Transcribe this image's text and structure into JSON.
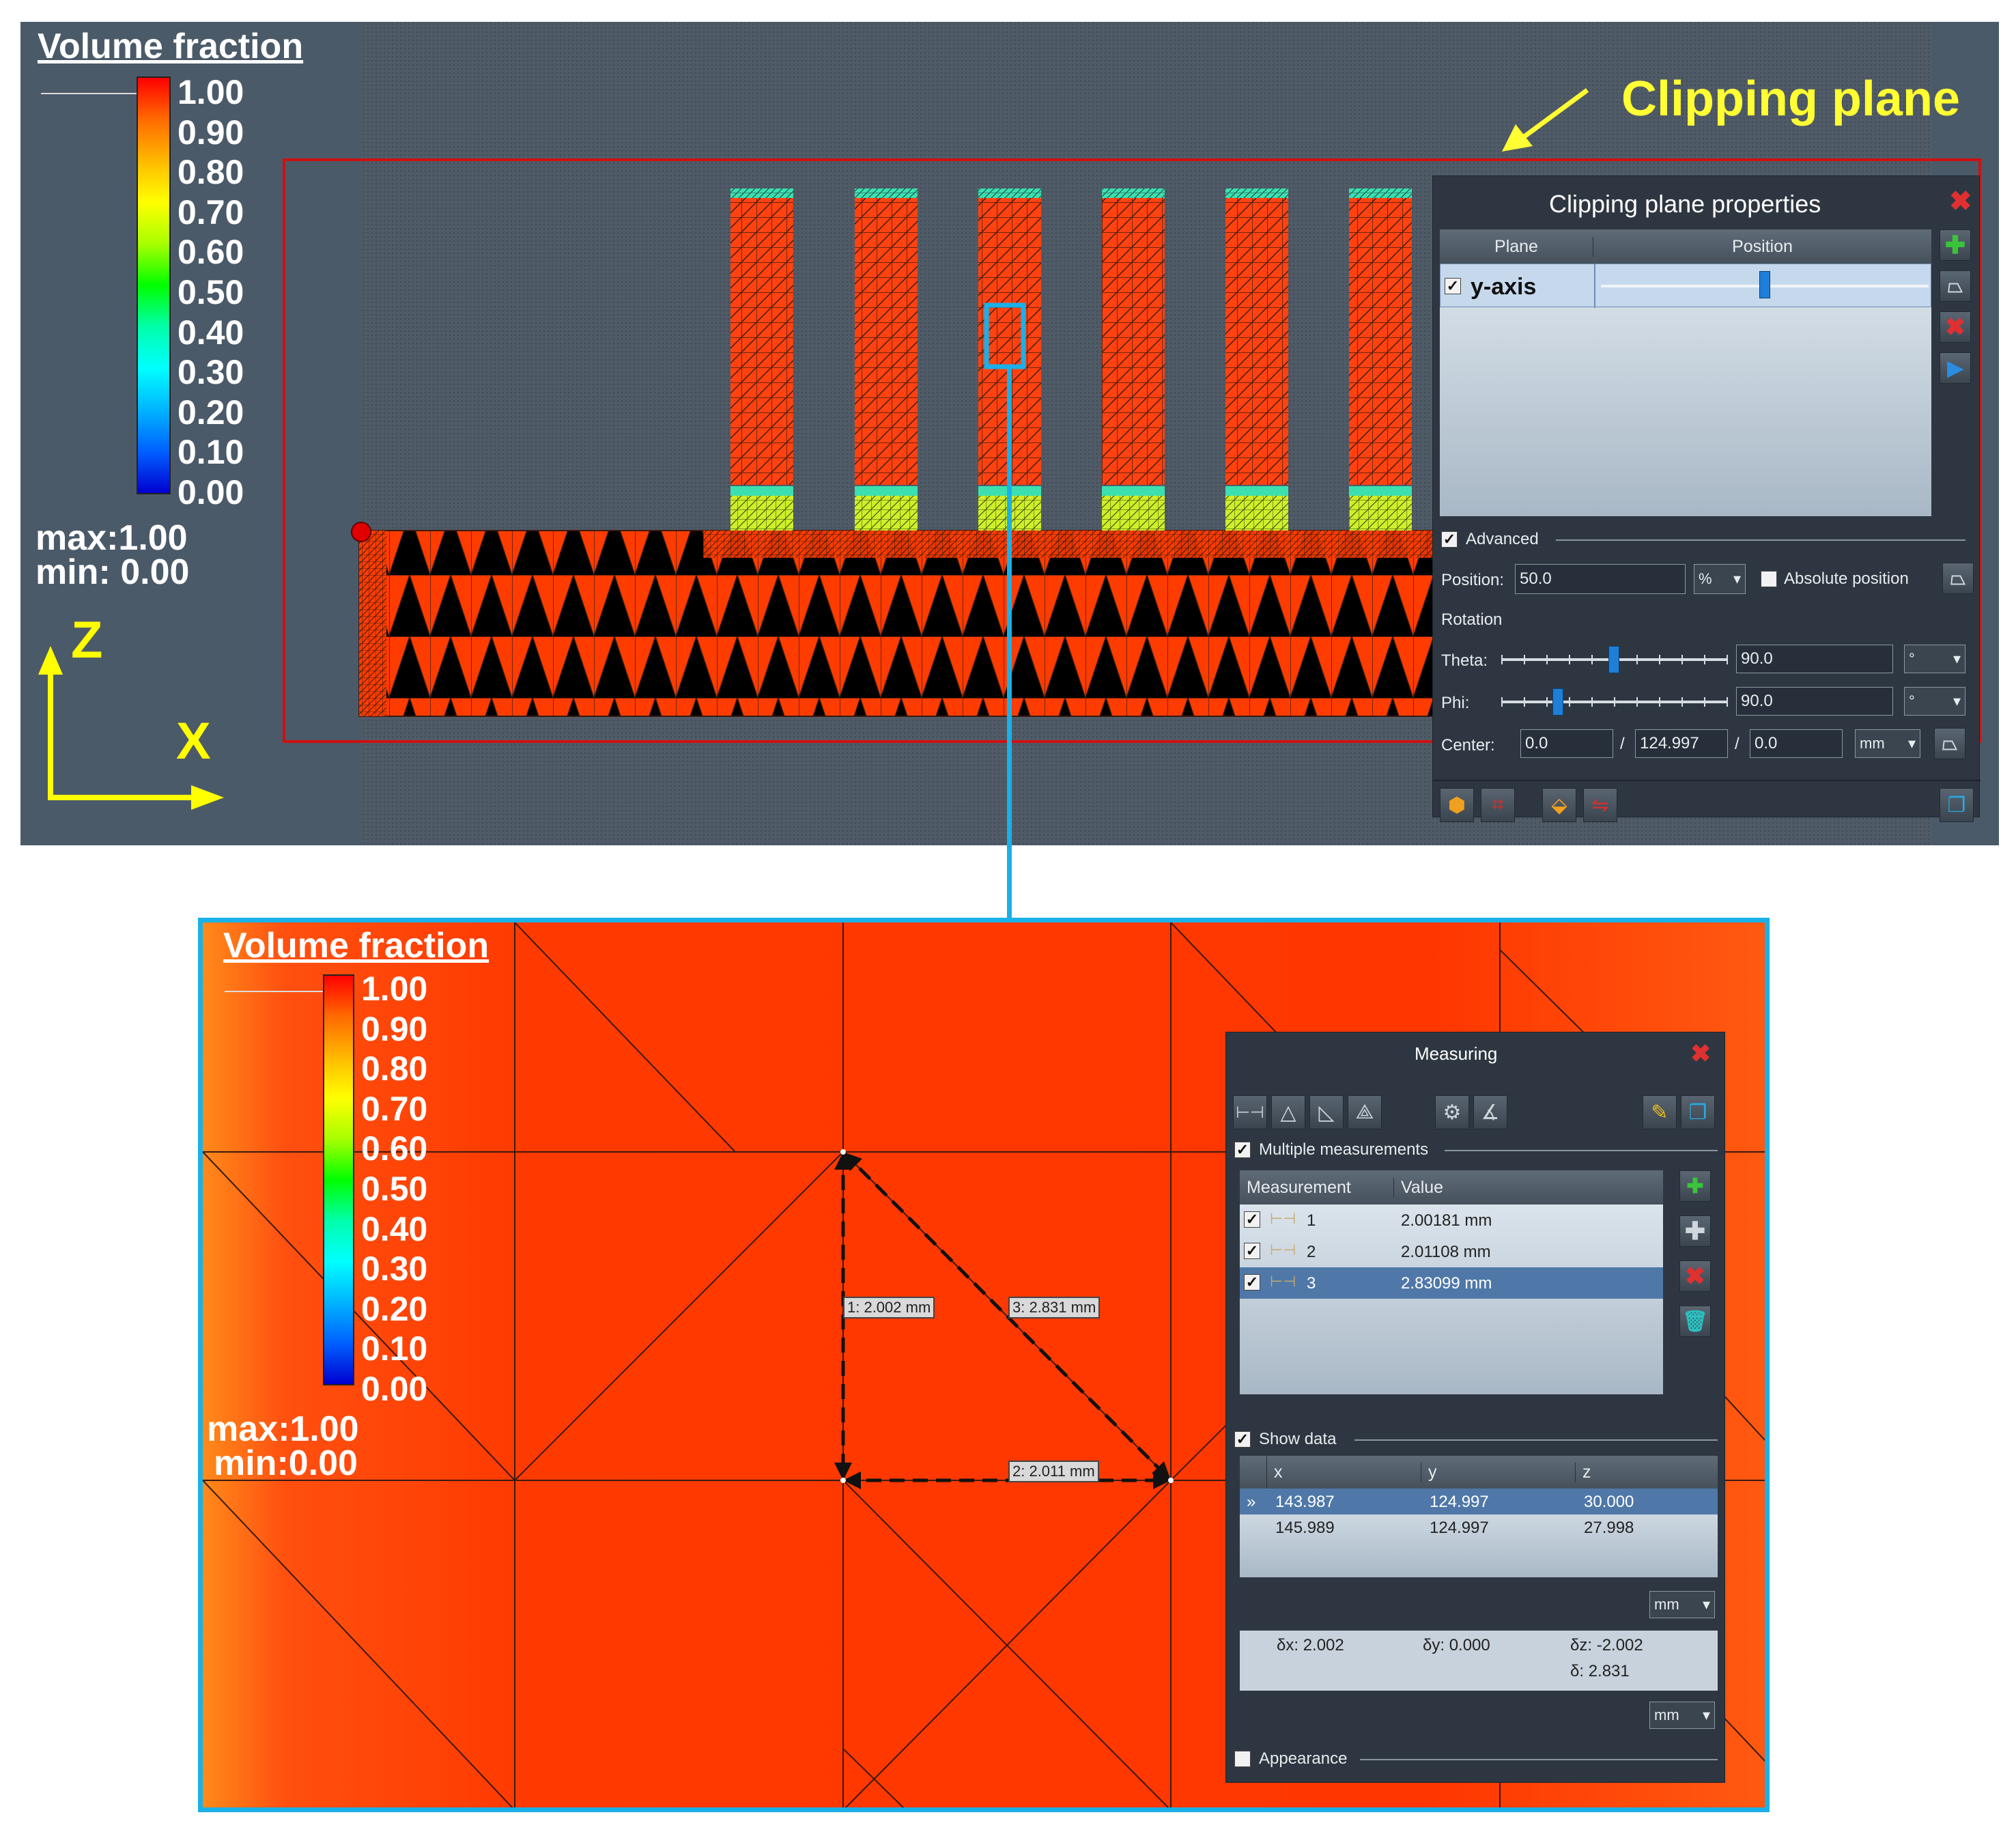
{
  "annotations": {
    "clipping_plane": "Clipping plane"
  },
  "legend": {
    "title": "Volume fraction",
    "ticks": [
      "1.00",
      "0.90",
      "0.80",
      "0.70",
      "0.60",
      "0.50",
      "0.40",
      "0.30",
      "0.20",
      "0.10",
      "0.00"
    ],
    "max_label": "max:1.00",
    "min_label_top": "min: 0.00",
    "min_label_zoom": "min:0.00"
  },
  "axes": {
    "vertical": "Z",
    "horizontal": "X"
  },
  "clipping_dialog": {
    "title": "Clipping plane properties",
    "columns": [
      "Plane",
      "Position"
    ],
    "rows": [
      {
        "checked": true,
        "name": "y-axis",
        "position_fraction": 0.5
      }
    ],
    "advanced_label": "Advanced",
    "position_label": "Position:",
    "position_value": "50.0",
    "position_unit": "%",
    "absolute_label": "Absolute position",
    "rotation_label": "Rotation",
    "theta_label": "Theta:",
    "theta_value": "90.0",
    "theta_fraction": 0.5,
    "phi_label": "Phi:",
    "phi_value": "90.0",
    "phi_fraction": 0.25,
    "degree_unit": "°",
    "center_label": "Center:",
    "center": [
      "0.0",
      "124.997",
      "0.0"
    ],
    "center_sep": "/",
    "center_unit": "mm"
  },
  "measuring_dialog": {
    "title": "Measuring",
    "multiple_label": "Multiple measurements",
    "columns": [
      "Measurement",
      "Value"
    ],
    "rows": [
      {
        "id": "1",
        "value": "2.00181 mm"
      },
      {
        "id": "2",
        "value": "2.01108 mm"
      },
      {
        "id": "3",
        "value": "2.83099 mm"
      }
    ],
    "show_data_label": "Show data",
    "data_columns": [
      "x",
      "y",
      "z"
    ],
    "row_marker": "»",
    "data_rows": [
      [
        "143.987",
        "124.997",
        "30.000"
      ],
      [
        "145.989",
        "124.997",
        "27.998"
      ]
    ],
    "unit": "mm",
    "deltas": {
      "dx": "δx: 2.002",
      "dy": "δy: 0.000",
      "dz": "δz: -2.002",
      "d": "δ: 2.831"
    },
    "appearance_label": "Appearance"
  },
  "measure_labels": [
    "1: 2.002 mm",
    "3: 2.831 mm",
    "2: 2.011 mm"
  ],
  "colors": {
    "background": "#4b5a69",
    "mesh": "#ff3c00",
    "highlight": "#1ab0e8",
    "axis": "#ffff00",
    "clip_frame": "#d01010"
  }
}
